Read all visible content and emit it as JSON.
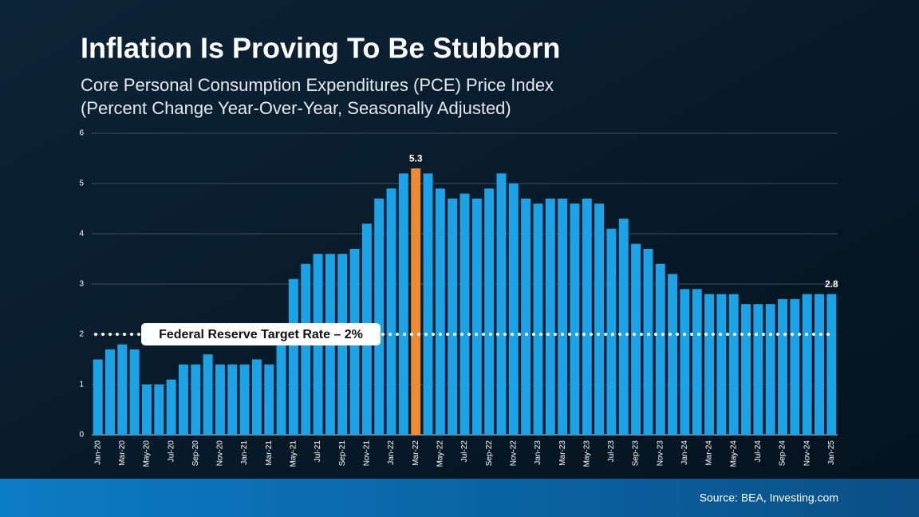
{
  "chart_data": {
    "type": "bar",
    "title": "Inflation Is Proving To Be Stubborn",
    "subtitle": [
      "Core Personal Consumption Expenditures (PCE) Price Index",
      "(Percent Change Year-Over-Year, Seasonally Adjusted)"
    ],
    "categories": [
      "Jan-20",
      null,
      "Mar-20",
      null,
      "May-20",
      null,
      "Jul-20",
      null,
      "Sep-20",
      null,
      "Nov-20",
      null,
      "Jan-21",
      null,
      "Mar-21",
      null,
      "May-21",
      null,
      "Jul-21",
      null,
      "Sep-21",
      null,
      "Nov-21",
      null,
      "Jan-22",
      null,
      "Mar-22",
      null,
      "May-22",
      null,
      "Jul-22",
      null,
      "Sep-22",
      null,
      "Nov-22",
      null,
      "Jan-23",
      null,
      "Mar-23",
      null,
      "May-23",
      null,
      "Jul-23",
      null,
      "Sep-23",
      null,
      "Nov-23",
      null,
      "Jan-24",
      null,
      "Mar-24",
      null,
      "May-24",
      null,
      "Jul-24",
      null,
      "Sep-24",
      null,
      "Nov-24",
      null,
      "Jan-25"
    ],
    "values": [
      1.5,
      1.7,
      1.8,
      1.7,
      1.0,
      1.0,
      1.1,
      1.4,
      1.4,
      1.6,
      1.4,
      1.4,
      1.4,
      1.5,
      1.4,
      1.9,
      3.1,
      3.4,
      3.6,
      3.6,
      3.6,
      3.7,
      4.2,
      4.7,
      4.9,
      5.2,
      5.3,
      5.2,
      4.9,
      4.7,
      4.8,
      4.7,
      4.9,
      5.2,
      5.0,
      4.7,
      4.6,
      4.7,
      4.7,
      4.6,
      4.7,
      4.6,
      4.1,
      4.3,
      3.8,
      3.7,
      3.4,
      3.2,
      2.9,
      2.9,
      2.8,
      2.8,
      2.8,
      2.6,
      2.6,
      2.6,
      2.7,
      2.7,
      2.8,
      2.8,
      2.8
    ],
    "value_labels": [
      null,
      null,
      null,
      null,
      null,
      null,
      null,
      null,
      null,
      null,
      null,
      null,
      null,
      null,
      null,
      null,
      null,
      null,
      null,
      null,
      null,
      null,
      null,
      null,
      null,
      null,
      "5.3",
      null,
      null,
      null,
      null,
      null,
      null,
      null,
      null,
      null,
      null,
      null,
      null,
      null,
      null,
      null,
      null,
      null,
      null,
      null,
      null,
      null,
      null,
      null,
      null,
      null,
      null,
      null,
      null,
      null,
      null,
      null,
      null,
      null,
      "2.8"
    ],
    "color": "#1ba3e8",
    "highlight_color": "#f08a2c",
    "ylim": [
      0,
      6
    ],
    "yticks": [
      0,
      1,
      2,
      3,
      4,
      5,
      6
    ],
    "grid": true,
    "reference_line": {
      "value": 2,
      "label": "Federal Reserve Target Rate – 2%"
    },
    "source": "Source: BEA, Investing.com"
  }
}
